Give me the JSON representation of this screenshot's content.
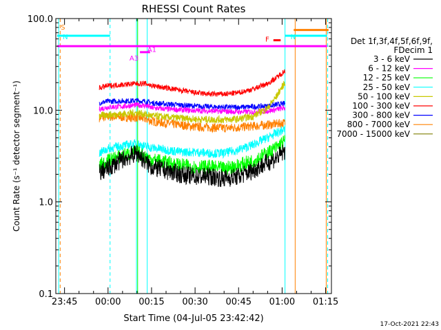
{
  "chart_data": {
    "type": "line",
    "title": "RHESSI Count Rates",
    "xlabel": "Start Time (04-Jul-05 23:42:42)",
    "ylabel": "Count Rate (s⁻¹ detector segment⁻¹)",
    "yscale": "log",
    "ylim": [
      0.1,
      100.0
    ],
    "xlim_minutes": [
      -18.0,
      77.0
    ],
    "x_ticks": [
      {
        "label": "23:45",
        "minutes": -15
      },
      {
        "label": "00:00",
        "minutes": 0
      },
      {
        "label": "00:15",
        "minutes": 15
      },
      {
        "label": "00:30",
        "minutes": 30
      },
      {
        "label": "00:45",
        "minutes": 45
      },
      {
        "label": "01:00",
        "minutes": 60
      },
      {
        "label": "01:15",
        "minutes": 75
      }
    ],
    "y_ticks": [
      {
        "label": "0.1",
        "value": 0.1
      },
      {
        "label": "1.0",
        "value": 1.0
      },
      {
        "label": "10.0",
        "value": 10.0
      },
      {
        "label": "100.0",
        "value": 100.0
      }
    ],
    "legend": {
      "placement": "right",
      "header": [
        "Det 1f,3f,4f,5f,6f,9f,",
        "FDecim 1"
      ],
      "entries": [
        {
          "label": "3 - 6 keV",
          "color": "#000000"
        },
        {
          "label": "6 - 12 keV",
          "color": "#ff00ff"
        },
        {
          "label": "12 - 25 keV",
          "color": "#00ff00"
        },
        {
          "label": "25 - 50 keV",
          "color": "#00ffff"
        },
        {
          "label": "50 - 100 keV",
          "color": "#c8c800"
        },
        {
          "label": "100 - 300 keV",
          "color": "#ff0000"
        },
        {
          "label": "300 - 800 keV",
          "color": "#0000ff"
        },
        {
          "label": "800 - 7000 keV",
          "color": "#ff8000"
        },
        {
          "label": "7000 - 15000 keV",
          "color": "#7f7f00"
        }
      ]
    },
    "x": [
      -3,
      0,
      5,
      10,
      13,
      15,
      20,
      25,
      30,
      35,
      40,
      45,
      50,
      55,
      58,
      61
    ],
    "series": [
      {
        "name": "3 - 6 keV",
        "color": "#000000",
        "noise": 0.1,
        "values": [
          2.1,
          2.3,
          2.9,
          3.4,
          2.7,
          2.4,
          2.2,
          2.0,
          1.9,
          1.9,
          1.8,
          1.9,
          2.2,
          2.7,
          3.0,
          3.6
        ]
      },
      {
        "name": "6 - 12 keV",
        "color": "#ff00ff",
        "noise": 0.03,
        "values": [
          10.3,
          10.8,
          11.0,
          11.4,
          11.2,
          10.6,
          10.3,
          10.1,
          9.9,
          9.8,
          9.7,
          9.6,
          9.6,
          9.8,
          10.2,
          10.6
        ]
      },
      {
        "name": "12 - 25 keV",
        "color": "#00ff00",
        "noise": 0.08,
        "values": [
          2.5,
          2.8,
          3.2,
          3.5,
          3.1,
          2.9,
          2.7,
          2.5,
          2.4,
          2.4,
          2.3,
          2.5,
          2.8,
          3.4,
          3.9,
          4.6
        ]
      },
      {
        "name": "25 - 50 keV",
        "color": "#00ffff",
        "noise": 0.05,
        "values": [
          3.4,
          3.8,
          4.1,
          4.3,
          4.0,
          3.9,
          3.7,
          3.5,
          3.5,
          3.4,
          3.4,
          3.7,
          4.2,
          5.0,
          5.6,
          6.2
        ]
      },
      {
        "name": "50 - 100 keV",
        "color": "#c8c800",
        "noise": 0.04,
        "values": [
          8.7,
          8.9,
          9.1,
          9.4,
          9.0,
          8.7,
          8.4,
          8.2,
          8.0,
          7.9,
          7.9,
          8.0,
          8.6,
          10.5,
          14.0,
          20.0
        ]
      },
      {
        "name": "100 - 300 keV",
        "color": "#ff0000",
        "noise": 0.03,
        "values": [
          17.5,
          18.5,
          19.0,
          19.5,
          19.5,
          18.5,
          17.5,
          16.5,
          15.5,
          15.0,
          15.0,
          15.5,
          17.0,
          19.5,
          22.5,
          27.0
        ]
      },
      {
        "name": "300 - 800 keV",
        "color": "#0000ff",
        "noise": 0.03,
        "values": [
          12.0,
          12.5,
          12.6,
          12.7,
          12.4,
          12.0,
          11.7,
          11.4,
          11.1,
          10.9,
          10.8,
          10.8,
          10.9,
          11.1,
          11.5,
          11.8
        ]
      },
      {
        "name": "800 - 7000 keV",
        "color": "#ff8000",
        "noise": 0.05,
        "values": [
          8.3,
          8.5,
          8.4,
          8.3,
          8.0,
          7.6,
          7.2,
          6.9,
          6.6,
          6.5,
          6.4,
          6.5,
          6.7,
          6.9,
          7.1,
          7.3
        ]
      }
    ],
    "flags": [
      {
        "code": "S",
        "color": "#ff8000",
        "start_minutes": -17.5,
        "end_minutes": -17.5,
        "level": 100.0
      },
      {
        "code": "N",
        "color": "#00ffff",
        "start_minutes": -17.5,
        "end_minutes": 0.7,
        "level": 65.0
      },
      {
        "code": "N",
        "color": "#00ffff",
        "start_minutes": 61.0,
        "end_minutes": 75.5,
        "level": 65.0
      },
      {
        "code": "F",
        "color": "#ff00ff",
        "start_minutes": -17.5,
        "end_minutes": 75.5,
        "level": 50.0
      },
      {
        "code": "A3",
        "color": "#ff00ff",
        "start_minutes": 11.0,
        "end_minutes": 14.5,
        "level": 43.0
      },
      {
        "code": "A1",
        "color": "#ff00ff",
        "start_minutes": 14.5,
        "end_minutes": 14.5,
        "level": 47.0
      },
      {
        "code": "F",
        "color": "#ff0000",
        "start_minutes": 57.0,
        "end_minutes": 59.5,
        "level": 58.0
      },
      {
        "code": "",
        "color": "#ff8000",
        "start_minutes": 64.0,
        "end_minutes": 76.0,
        "level": 75.0
      }
    ],
    "markers": [
      {
        "minutes": -17.0,
        "color": "#00ffff",
        "style": "solid"
      },
      {
        "minutes": -16.5,
        "color": "#ff8000",
        "style": "dashed"
      },
      {
        "minutes": 0.7,
        "color": "#00ffff",
        "style": "dashed"
      },
      {
        "minutes": 9.8,
        "color": "#00ffff",
        "style": "solid"
      },
      {
        "minutes": 10.2,
        "color": "#00ff00",
        "style": "solid"
      },
      {
        "minutes": 13.5,
        "color": "#00ffff",
        "style": "solid"
      },
      {
        "minutes": 61.0,
        "color": "#00ffff",
        "style": "solid"
      },
      {
        "minutes": 64.5,
        "color": "#ff8000",
        "style": "solid"
      },
      {
        "minutes": 75.2,
        "color": "#ff8000",
        "style": "solid"
      },
      {
        "minutes": 75.7,
        "color": "#00ffff",
        "style": "dashed"
      }
    ],
    "grid": false
  },
  "footer": {
    "timestamp": "17-Oct-2021 22:43"
  }
}
